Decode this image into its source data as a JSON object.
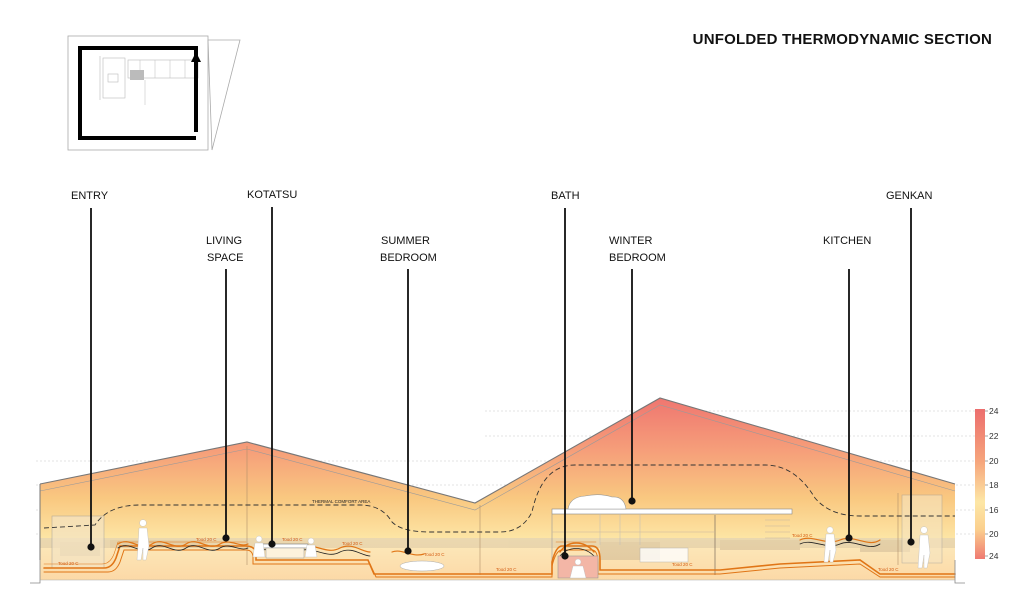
{
  "title": "UNFOLDED THERMODYNAMIC SECTION",
  "spaces": [
    {
      "key": "entry",
      "lines": [
        "ENTRY"
      ]
    },
    {
      "key": "living",
      "lines": [
        "LIVING",
        "SPACE"
      ]
    },
    {
      "key": "kotatsu",
      "lines": [
        "KOTATSU"
      ]
    },
    {
      "key": "summer",
      "lines": [
        "SUMMER",
        "BEDROOM"
      ]
    },
    {
      "key": "bath",
      "lines": [
        "BATH"
      ]
    },
    {
      "key": "winter",
      "lines": [
        "WINTER",
        "BEDROOM"
      ]
    },
    {
      "key": "kitchen",
      "lines": [
        "KITCHEN"
      ]
    },
    {
      "key": "genkan",
      "lines": [
        "GENKAN"
      ]
    }
  ],
  "comfort_label": "THERMAL COMFORT AREA",
  "floor_tag": "Tood 20 C",
  "scale_ticks": [
    "24",
    "22",
    "20",
    "18",
    "16",
    "20",
    "24"
  ],
  "colors": {
    "warm_top": "#f07d74",
    "warm_mid": "#f9c27c",
    "warm_low": "#fde5a8",
    "cool": "#fdf7e0",
    "floor_line": "#e07516",
    "ink": "#111111"
  }
}
